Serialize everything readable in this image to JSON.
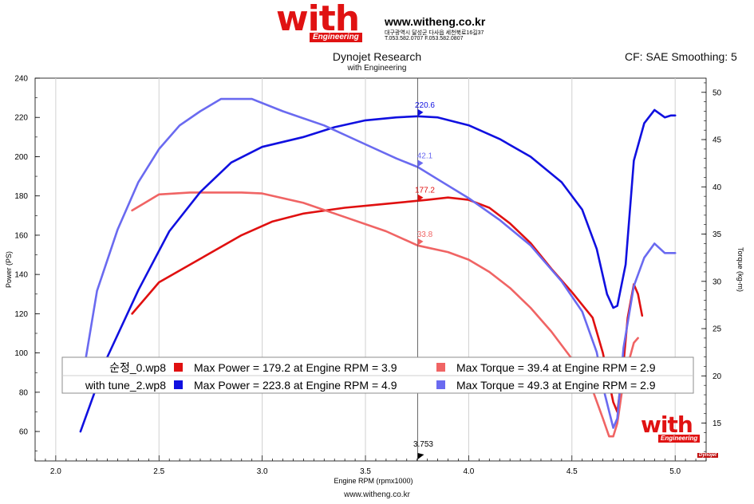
{
  "header": {
    "logo": "with",
    "logo_sub": "Engineering",
    "site_url": "www.witheng.co.kr",
    "site_address": "대구광역시 달성군 다사읍 세천북로16길37",
    "site_phone": "T.053.582.0707 F.053.582.0807"
  },
  "chart_title": "Dynojet Research",
  "chart_subtitle": "with Engineering",
  "correction": "CF: SAE Smoothing: 5",
  "footer": "www.witheng.co.kr",
  "corner_logo": "with",
  "corner_logo_sub": "Engineering",
  "brand_mark": "Dynojet",
  "colors": {
    "power_stock": "#e01010",
    "torque_stock": "#f06464",
    "power_tune": "#1010e0",
    "torque_tune": "#6a6af0"
  },
  "legend": {
    "rows": [
      {
        "file": "순정_0.wp8",
        "power": "Max Power = 179.2 at Engine RPM = 3.9",
        "torque": "Max Torque = 39.4 at Engine RPM = 2.9"
      },
      {
        "file": "with tune_2.wp8",
        "power": "Max Power = 223.8 at Engine RPM = 4.9",
        "torque": "Max Torque = 49.3 at Engine RPM = 2.9"
      }
    ]
  },
  "chart_data": {
    "type": "line",
    "xlabel": "Engine RPM (rpmx1000)",
    "ylabel": "Power (PS)",
    "y2label": "Torque (kg-m)",
    "xlim": [
      1.9,
      5.15
    ],
    "ylim": [
      45,
      240
    ],
    "y2lim": [
      11.0,
      51.5
    ],
    "xticks": [
      "2.0",
      "2.5",
      "3.0",
      "3.5",
      "4.0",
      "4.5",
      "5.0"
    ],
    "yticks": [
      "60",
      "80",
      "100",
      "120",
      "140",
      "160",
      "180",
      "200",
      "220",
      "240"
    ],
    "y2ticks": [
      "15",
      "20",
      "25",
      "30",
      "35",
      "40",
      "45",
      "50"
    ],
    "grid": "vertical",
    "cursor": {
      "x": 3.753,
      "label": "3.753"
    },
    "cursor_readouts": [
      {
        "series": "power_stock",
        "label": "177.2",
        "y": 177.2
      },
      {
        "series": "torque_stock",
        "label": "33.8",
        "y": 33.8
      },
      {
        "series": "power_tune",
        "label": "220.6",
        "y": 220.6
      },
      {
        "series": "torque_tune",
        "label": "42.1",
        "y": 42.1
      }
    ],
    "series": [
      {
        "id": "power_stock",
        "axis": "left",
        "x": [
          2.37,
          2.5,
          2.7,
          2.9,
          3.05,
          3.2,
          3.4,
          3.55,
          3.7,
          3.8,
          3.9,
          4.0,
          4.1,
          4.2,
          4.3,
          4.4,
          4.5,
          4.6,
          4.65,
          4.7,
          4.72,
          4.75,
          4.77,
          4.8,
          4.82,
          4.84
        ],
        "values": [
          120,
          136,
          148,
          160,
          167,
          171,
          174,
          175.5,
          177,
          178,
          179.2,
          178,
          174,
          166,
          156,
          143,
          131,
          118,
          100,
          75,
          70,
          95,
          118,
          135,
          130,
          119
        ]
      },
      {
        "id": "torque_stock",
        "axis": "right",
        "x": [
          2.37,
          2.5,
          2.65,
          2.8,
          2.9,
          3.0,
          3.2,
          3.4,
          3.6,
          3.753,
          3.9,
          4.0,
          4.1,
          4.2,
          4.3,
          4.4,
          4.5,
          4.6,
          4.65,
          4.68,
          4.7,
          4.72,
          4.75,
          4.8,
          4.82
        ],
        "values": [
          37.5,
          39.2,
          39.4,
          39.4,
          39.4,
          39.3,
          38.3,
          36.8,
          35.3,
          33.8,
          33.1,
          32.3,
          31.0,
          29.3,
          27.2,
          24.7,
          21.8,
          18.5,
          15.5,
          13.6,
          13.6,
          15.0,
          19.5,
          23.5,
          24.0
        ]
      },
      {
        "id": "power_tune",
        "axis": "left",
        "x": [
          2.12,
          2.25,
          2.4,
          2.55,
          2.7,
          2.85,
          3.0,
          3.2,
          3.35,
          3.5,
          3.65,
          3.753,
          3.85,
          4.0,
          4.15,
          4.3,
          4.45,
          4.55,
          4.62,
          4.67,
          4.7,
          4.72,
          4.76,
          4.8,
          4.85,
          4.9,
          4.95,
          4.98,
          5.0
        ],
        "values": [
          60,
          98,
          132,
          162,
          182,
          197,
          205,
          210,
          215,
          218.5,
          220,
          220.6,
          220,
          216,
          209,
          200,
          187,
          173,
          153,
          130,
          123,
          124,
          145,
          198,
          217,
          223.8,
          220,
          221,
          221
        ]
      },
      {
        "id": "torque_tune",
        "axis": "right",
        "x": [
          2.12,
          2.2,
          2.3,
          2.4,
          2.5,
          2.6,
          2.7,
          2.8,
          2.95,
          3.1,
          3.3,
          3.5,
          3.65,
          3.753,
          3.85,
          4.0,
          4.15,
          4.3,
          4.45,
          4.55,
          4.62,
          4.66,
          4.7,
          4.72,
          4.75,
          4.8,
          4.85,
          4.9,
          4.95,
          5.0
        ],
        "values": [
          18.5,
          29,
          35.5,
          40.5,
          44,
          46.5,
          48,
          49.3,
          49.3,
          48.0,
          46.5,
          44.5,
          43.0,
          42.1,
          40.8,
          38.8,
          36.5,
          33.8,
          30.0,
          26.8,
          22.5,
          18.0,
          14.5,
          15.5,
          23.0,
          29.5,
          32.5,
          34.0,
          33.0,
          33.0
        ]
      }
    ]
  }
}
